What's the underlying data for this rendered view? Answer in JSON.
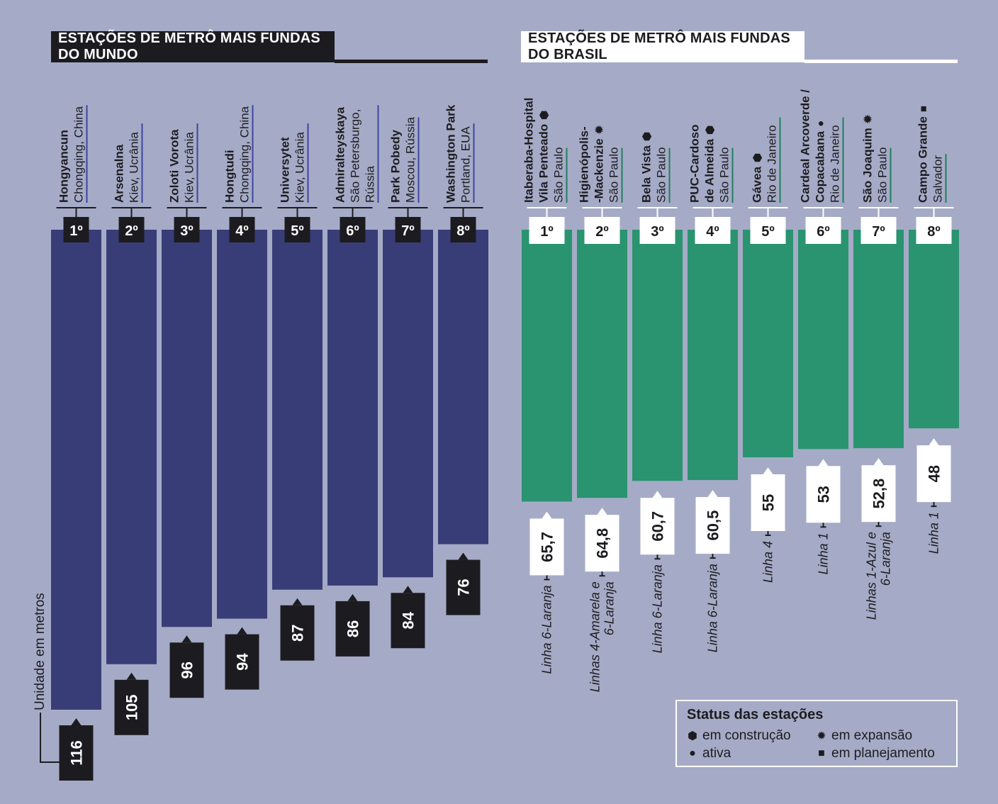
{
  "titles": {
    "world": "ESTAÇÕES DE METRÔ MAIS FUNDAS DO MUNDO",
    "brazil": "ESTAÇÕES DE METRÔ MAIS FUNDAS DO BRASIL"
  },
  "unit_label": "Unidade em metros",
  "colors": {
    "world": "#383d78",
    "brazil": "#2a9370",
    "background": "#a5abc6",
    "dark": "#1c1c20"
  },
  "legend": {
    "title": "Status das estações",
    "items": [
      {
        "symbol": "hexagon-icon",
        "glyph": "⬢",
        "label": "em construção"
      },
      {
        "symbol": "star-icon",
        "glyph": "✹",
        "label": "em expansão"
      },
      {
        "symbol": "circle-icon",
        "glyph": "●",
        "label": "ativa"
      },
      {
        "symbol": "square-icon",
        "glyph": "■",
        "label": "em planejamento"
      }
    ]
  },
  "chart_data": [
    {
      "type": "bar",
      "title": "ESTAÇÕES DE METRÔ MAIS FUNDAS DO MUNDO",
      "ylabel": "Unidade em metros",
      "ylim": [
        0,
        116
      ],
      "categories": [
        "1º",
        "2º",
        "3º",
        "4º",
        "5º",
        "6º",
        "7º",
        "8º"
      ],
      "stations": [
        {
          "rank": "1º",
          "name": "Hongyancun",
          "location": [
            "Chongqing, China"
          ],
          "value": 116,
          "value_label": "116"
        },
        {
          "rank": "2º",
          "name": "Arsenalna",
          "location": [
            "Kiev, Ucrânia"
          ],
          "value": 105,
          "value_label": "105"
        },
        {
          "rank": "3º",
          "name": "Zoloti Vorota",
          "location": [
            "Kiev, Ucrânia"
          ],
          "value": 96,
          "value_label": "96"
        },
        {
          "rank": "4º",
          "name": "Hongtudi",
          "location": [
            "Chongqing, China"
          ],
          "value": 94,
          "value_label": "94"
        },
        {
          "rank": "5º",
          "name": "Universytet",
          "location": [
            "Kiev, Ucrânia"
          ],
          "value": 87,
          "value_label": "87"
        },
        {
          "rank": "6º",
          "name": "Admiralteyskaya",
          "location": [
            "São Petersburgo,",
            "Rússia"
          ],
          "value": 86,
          "value_label": "86"
        },
        {
          "rank": "7º",
          "name": "Park Pobedy",
          "location": [
            "Moscou, Rússia"
          ],
          "value": 84,
          "value_label": "84"
        },
        {
          "rank": "8º",
          "name": "Washington Park",
          "location": [
            "Portland, EUA"
          ],
          "value": 76,
          "value_label": "76"
        }
      ]
    },
    {
      "type": "bar",
      "title": "ESTAÇÕES DE METRÔ MAIS FUNDAS DO BRASIL",
      "ylim": [
        0,
        116
      ],
      "categories": [
        "1º",
        "2º",
        "3º",
        "4º",
        "5º",
        "6º",
        "7º",
        "8º"
      ],
      "stations": [
        {
          "rank": "1º",
          "name": [
            "Itaberaba-Hospital",
            "Vila Penteado"
          ],
          "status": "em construção",
          "status_glyph": "⬢",
          "location": [
            "São Paulo"
          ],
          "value": 65.7,
          "value_label": "65,7",
          "line": [
            "Linha 6-Laranja"
          ]
        },
        {
          "rank": "2º",
          "name": [
            "Higienópolis-",
            "-Mackenzie"
          ],
          "status": "em expansão",
          "status_glyph": "✹",
          "location": [
            "São Paulo"
          ],
          "value": 64.8,
          "value_label": "64,8",
          "line": [
            "Linhas 4-Amarela e",
            "6-Laranja"
          ]
        },
        {
          "rank": "3º",
          "name": [
            "Bela Vista"
          ],
          "status": "em construção",
          "status_glyph": "⬢",
          "location": [
            "São Paulo"
          ],
          "value": 60.7,
          "value_label": "60,7",
          "line": [
            "Linha 6-Laranja"
          ]
        },
        {
          "rank": "4º",
          "name": [
            "PUC-Cardoso",
            "de Almeida"
          ],
          "status": "em construção",
          "status_glyph": "⬢",
          "location": [
            "São Paulo"
          ],
          "value": 60.5,
          "value_label": "60,5",
          "line": [
            "Linha 6-Laranja"
          ]
        },
        {
          "rank": "5º",
          "name": [
            "Gávea"
          ],
          "status": "em construção",
          "status_glyph": "⬢",
          "location": [
            "Rio de Janeiro"
          ],
          "value": 55,
          "value_label": "55",
          "line": [
            "Linha 4"
          ]
        },
        {
          "rank": "6º",
          "name": [
            "Cardeal Arcoverde /",
            "Copacabana"
          ],
          "status": "ativa",
          "status_glyph": "●",
          "location": [
            "Rio de Janeiro"
          ],
          "value": 53,
          "value_label": "53",
          "line": [
            "Linha 1"
          ]
        },
        {
          "rank": "7º",
          "name": [
            "São Joaquim"
          ],
          "status": "em expansão",
          "status_glyph": "✹",
          "location": [
            "São Paulo"
          ],
          "value": 52.8,
          "value_label": "52,8",
          "line": [
            "Linhas 1-Azul e",
            "6-Laranja"
          ]
        },
        {
          "rank": "8º",
          "name": [
            "Campo Grande"
          ],
          "status": "em planejamento",
          "status_glyph": "■",
          "location": [
            "Salvador"
          ],
          "value": 48,
          "value_label": "48",
          "line": [
            "Linha 1"
          ]
        }
      ]
    }
  ]
}
